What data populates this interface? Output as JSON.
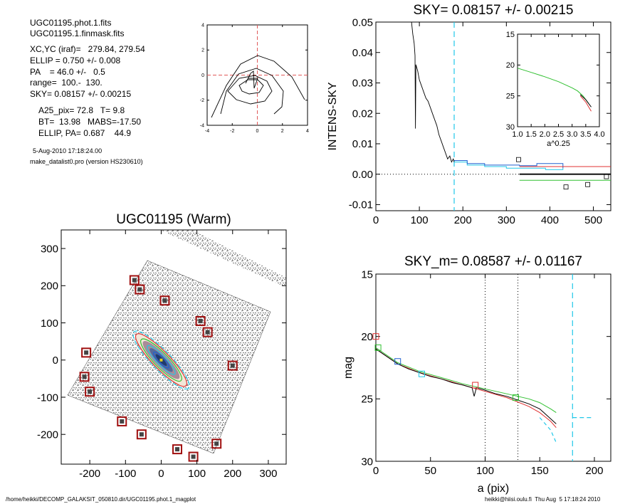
{
  "header": {
    "lines": [
      "UGC01195.phot.1.fits",
      "UGC01195.1.finmask.fits",
      "XC,YC (iraf)=   279.84, 279.54",
      "ELLIP = 0.750 +/- 0.008",
      "PA    = 46.0 +/-   0.5",
      "range=  100.-  130.",
      "SKY= 0.08157 +/- 0.00215",
      "A25_pix= 72.8   T= 9.8",
      "BT=  13.98   MABS=-17.50",
      "ELLIP, PA= 0.687    44.9"
    ],
    "date_line": "5-Aug-2010 17:18:24.00",
    "program_line": "make_datalist0.pro (version HS230610)"
  },
  "footer": {
    "path": "/home/heikki/DECOMP_GALAKSIT_050810.dir/UGC01195.phot.1_magplot",
    "user_stamp": "heikki@hiisi.oulu.fi  Thu Aug  5 17:18:24 2010"
  },
  "colors": {
    "axis": "#000000",
    "contour": "#000000",
    "center_cross": "#e05a5a",
    "cyan": "#20c8e8",
    "red": "#e03030",
    "green": "#30c030",
    "blue": "#2060d0",
    "dotted": "#000000",
    "marker_red": "#a01010"
  },
  "chart_data": [
    {
      "id": "contour",
      "type": "contour",
      "title": "",
      "xlabel": "",
      "ylabel": "",
      "xlim": [
        -4,
        4
      ],
      "ylim": [
        -4,
        4
      ],
      "xticks": [
        -4,
        -2,
        0,
        2,
        4
      ],
      "yticks": [
        -4,
        -2,
        0,
        2,
        4
      ],
      "center": [
        0,
        0
      ]
    },
    {
      "id": "sky",
      "type": "line",
      "title": "SKY= 0.08157 +/- 0.00215",
      "xlabel": "",
      "ylabel": "INTENS-SKY",
      "xlim": [
        0,
        540
      ],
      "ylim": [
        -0.012,
        0.05
      ],
      "xticks": [
        0,
        100,
        200,
        300,
        400,
        500
      ],
      "yticks": [
        -0.01,
        0.0,
        0.01,
        0.02,
        0.03,
        0.04,
        0.05
      ],
      "ytick_labels": [
        "-0.01",
        "0.00",
        "0.01",
        "0.02",
        "0.03",
        "0.04",
        "0.05"
      ],
      "vline_x": 180,
      "black_profile": [
        [
          82,
          0.05
        ],
        [
          85,
          0.046
        ],
        [
          88,
          0.043
        ],
        [
          90,
          0.039
        ],
        [
          91,
          0.015
        ],
        [
          92,
          0.036
        ],
        [
          96,
          0.034
        ],
        [
          100,
          0.031
        ],
        [
          105,
          0.029
        ],
        [
          110,
          0.027
        ],
        [
          115,
          0.025
        ],
        [
          120,
          0.024
        ],
        [
          125,
          0.022
        ],
        [
          130,
          0.02
        ],
        [
          135,
          0.018
        ],
        [
          140,
          0.016
        ],
        [
          145,
          0.013
        ],
        [
          150,
          0.011
        ],
        [
          155,
          0.009
        ],
        [
          160,
          0.007
        ],
        [
          165,
          0.005
        ],
        [
          170,
          0.006
        ],
        [
          174,
          0.004
        ],
        [
          178,
          0.005
        ],
        [
          180,
          0.004
        ]
      ],
      "cyan_steps": [
        [
          180,
          0.004
        ],
        [
          210,
          0.003
        ],
        [
          250,
          0.0025
        ],
        [
          300,
          0.002
        ],
        [
          330,
          0.002
        ],
        [
          390,
          0.0015
        ],
        [
          430,
          0.002
        ]
      ],
      "blue_steps": [
        [
          180,
          0.0045
        ],
        [
          210,
          0.0035
        ],
        [
          250,
          0.003
        ],
        [
          290,
          0.003
        ],
        [
          330,
          0.0028
        ],
        [
          370,
          0.0035
        ],
        [
          430,
          0.002
        ]
      ],
      "red_line": [
        [
          330,
          0.0025
        ],
        [
          540,
          0.0025
        ]
      ],
      "black_line": [
        [
          330,
          0.0
        ],
        [
          540,
          0.0
        ]
      ],
      "green_line": [
        [
          330,
          -0.002
        ],
        [
          540,
          -0.002
        ]
      ],
      "squares": [
        [
          328,
          0.0048
        ],
        [
          437,
          -0.0042
        ],
        [
          487,
          -0.0034
        ],
        [
          530,
          -0.0008
        ]
      ],
      "inset": {
        "type": "line",
        "xlabel": "a^0.25",
        "xlim": [
          1.0,
          4.0
        ],
        "ylim": [
          15,
          30
        ],
        "xticks": [
          1.0,
          1.5,
          2.0,
          2.5,
          3.0,
          3.5,
          4.0
        ],
        "xtick_labels": [
          "1.0",
          "1.5",
          "2.0",
          "2.5",
          "3.0",
          "3.5",
          "4.0"
        ],
        "yticks": [
          15,
          20,
          25,
          30
        ],
        "green": [
          [
            1.0,
            20.5
          ],
          [
            1.5,
            21.2
          ],
          [
            2.0,
            21.9
          ],
          [
            2.5,
            22.7
          ],
          [
            3.0,
            23.7
          ],
          [
            3.2,
            24.2
          ],
          [
            3.4,
            25.0
          ],
          [
            3.6,
            26.2
          ]
        ],
        "red": [
          [
            3.3,
            25.0
          ],
          [
            3.5,
            26.0
          ],
          [
            3.7,
            27.5
          ]
        ],
        "black": [
          [
            3.3,
            24.8
          ],
          [
            3.5,
            25.6
          ],
          [
            3.7,
            26.8
          ]
        ]
      }
    },
    {
      "id": "image",
      "type": "image",
      "title": "UGC01195 (Warm)",
      "xlabel": "",
      "ylabel": "",
      "xlim": [
        -280,
        350
      ],
      "ylim": [
        -280,
        350
      ],
      "xticks": [
        -200,
        -100,
        0,
        100,
        200,
        300
      ],
      "yticks": [
        -200,
        -100,
        0,
        100,
        200,
        300
      ],
      "ellipse_pa_deg": 46.0,
      "ellipses": [
        {
          "a": 110,
          "b": 27,
          "color": "#20c8e8",
          "dash": true
        },
        {
          "a": 100,
          "b": 24,
          "color": "#e03030"
        },
        {
          "a": 80,
          "b": 20,
          "color": "#30c030"
        },
        {
          "a": 55,
          "b": 13,
          "color": "#20c8e8"
        },
        {
          "a": 30,
          "b": 8,
          "color": "#2060d0"
        }
      ],
      "markers": [
        [
          -75,
          215
        ],
        [
          -60,
          190
        ],
        [
          10,
          160
        ],
        [
          110,
          105
        ],
        [
          130,
          75
        ],
        [
          -210,
          20
        ],
        [
          200,
          -15
        ],
        [
          -215,
          -45
        ],
        [
          -200,
          -85
        ],
        [
          -110,
          -165
        ],
        [
          -55,
          -200
        ],
        [
          45,
          -240
        ],
        [
          90,
          -260
        ],
        [
          155,
          -225
        ]
      ]
    },
    {
      "id": "mag",
      "type": "line",
      "title": "SKY_m=  0.08587 +/- 0.01167",
      "xlabel": "a (pix)",
      "ylabel": "mag",
      "xlim": [
        0,
        215
      ],
      "ylim": [
        15,
        30
      ],
      "ylim_inverted": true,
      "xticks": [
        0,
        50,
        100,
        150,
        200
      ],
      "yticks": [
        15,
        20,
        25,
        30
      ],
      "dotted_vlines": [
        100,
        130
      ],
      "dashed_vline": 180,
      "black": [
        [
          0,
          21.0
        ],
        [
          10,
          21.6
        ],
        [
          20,
          22.2
        ],
        [
          30,
          22.6
        ],
        [
          40,
          22.9
        ],
        [
          50,
          23.2
        ],
        [
          60,
          23.4
        ],
        [
          70,
          23.7
        ],
        [
          80,
          23.9
        ],
        [
          88,
          24.1
        ],
        [
          90,
          24.8
        ],
        [
          92,
          24.1
        ],
        [
          100,
          24.3
        ],
        [
          110,
          24.6
        ],
        [
          120,
          24.8
        ],
        [
          130,
          25.1
        ],
        [
          140,
          25.4
        ],
        [
          150,
          25.8
        ],
        [
          155,
          26.2
        ],
        [
          160,
          26.6
        ],
        [
          165,
          27.0
        ]
      ],
      "red": [
        [
          0,
          21.0
        ],
        [
          20,
          22.2
        ],
        [
          40,
          22.9
        ],
        [
          60,
          23.4
        ],
        [
          80,
          23.9
        ],
        [
          100,
          24.4
        ],
        [
          120,
          24.9
        ],
        [
          140,
          25.6
        ],
        [
          150,
          26.1
        ],
        [
          160,
          26.8
        ],
        [
          165,
          27.3
        ]
      ],
      "green": [
        [
          0,
          20.9
        ],
        [
          20,
          22.1
        ],
        [
          40,
          22.8
        ],
        [
          60,
          23.3
        ],
        [
          80,
          23.8
        ],
        [
          100,
          24.2
        ],
        [
          120,
          24.6
        ],
        [
          140,
          25.0
        ],
        [
          150,
          25.3
        ],
        [
          160,
          25.8
        ],
        [
          165,
          26.1
        ]
      ],
      "cyan": [
        [
          150,
          26.5
        ],
        [
          160,
          27.5
        ],
        [
          165,
          28.5
        ]
      ],
      "cyan_dash_end": [
        [
          180,
          26.5
        ],
        [
          197,
          26.5
        ]
      ],
      "squares": [
        {
          "x": 0,
          "y": 20.0,
          "color": "#e03030"
        },
        {
          "x": 2,
          "y": 20.9,
          "color": "#30c030"
        },
        {
          "x": 20,
          "y": 22.0,
          "color": "#2060d0"
        },
        {
          "x": 42,
          "y": 23.0,
          "color": "#20c8e8"
        },
        {
          "x": 91,
          "y": 23.9,
          "color": "#e03030"
        },
        {
          "x": 128,
          "y": 24.9,
          "color": "#30c030"
        }
      ]
    }
  ]
}
